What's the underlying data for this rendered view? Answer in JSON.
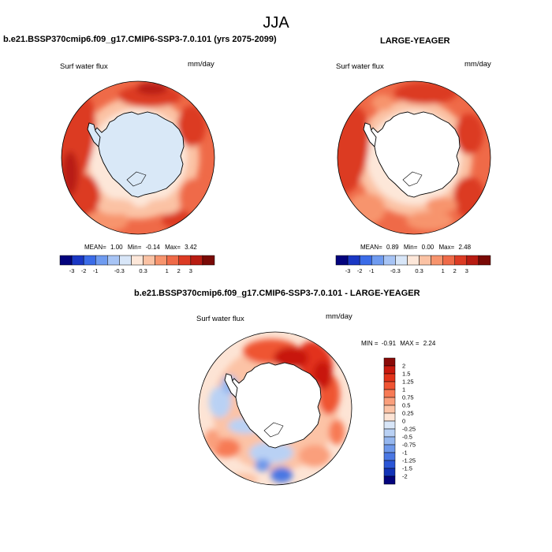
{
  "main_title": "JJA",
  "colors": {
    "ocean_base": "#f08262",
    "ice_model": "#d9e8f7",
    "ice_obs": "#ffffff",
    "coastline": "#000000",
    "diff_land": "#ffffff"
  },
  "panels": {
    "left": {
      "title": "b.e21.BSSP370cmip6.f09_g17.CMIP6-SSP3-7.0.101 (yrs 2075-2099)",
      "variable": "Surf water flux",
      "units": "mm/day",
      "stats": {
        "mean_label": "MEAN=",
        "mean": "1.00",
        "min_label": "Min=",
        "min": "-0.14",
        "max_label": "Max=",
        "max": "3.42"
      }
    },
    "right": {
      "title": "LARGE-YEAGER",
      "variable": "Surf water flux",
      "units": "mm/day",
      "stats": {
        "mean_label": "MEAN=",
        "mean": "0.89",
        "min_label": "Min=",
        "min": "0.00",
        "max_label": "Max=",
        "max": "2.48"
      }
    },
    "diff": {
      "title": "b.e21.BSSP370cmip6.f09_g17.CMIP6-SSP3-7.0.101 - LARGE-YEAGER",
      "variable": "Surf water flux",
      "units": "mm/day",
      "stats": {
        "min_label": "MIN =",
        "min": "-0.91",
        "max_label": "MAX =",
        "max": "2.24"
      }
    }
  },
  "colorbar_horizontal": {
    "colors": [
      "#03037d",
      "#1a37c4",
      "#3b6ce8",
      "#6f9bf0",
      "#a7c4f5",
      "#d8e6f8",
      "#fde7d9",
      "#fbc2a4",
      "#f7946d",
      "#ef6a48",
      "#dc3b24",
      "#b81c12",
      "#7a0a06"
    ],
    "labels": [
      "-3",
      "-2",
      "-1",
      "-0.3",
      "0.3",
      "1",
      "2",
      "3"
    ]
  },
  "colorbar_vertical": {
    "colors": [
      "#8a0a08",
      "#c8190e",
      "#e2331a",
      "#ef5433",
      "#f77a55",
      "#fa9f7c",
      "#fcc3a6",
      "#fde4d5",
      "#d8e6f8",
      "#b9d1f4",
      "#95b7ef",
      "#6e98ea",
      "#4a77e3",
      "#2a55d6",
      "#1233b8",
      "#03037d"
    ],
    "labels": [
      "2",
      "1.5",
      "1.25",
      "1",
      "0.75",
      "0.5",
      "0.25",
      "0",
      "-0.25",
      "-0.5",
      "-0.75",
      "-1",
      "-1.25",
      "-1.5",
      "-2"
    ]
  }
}
